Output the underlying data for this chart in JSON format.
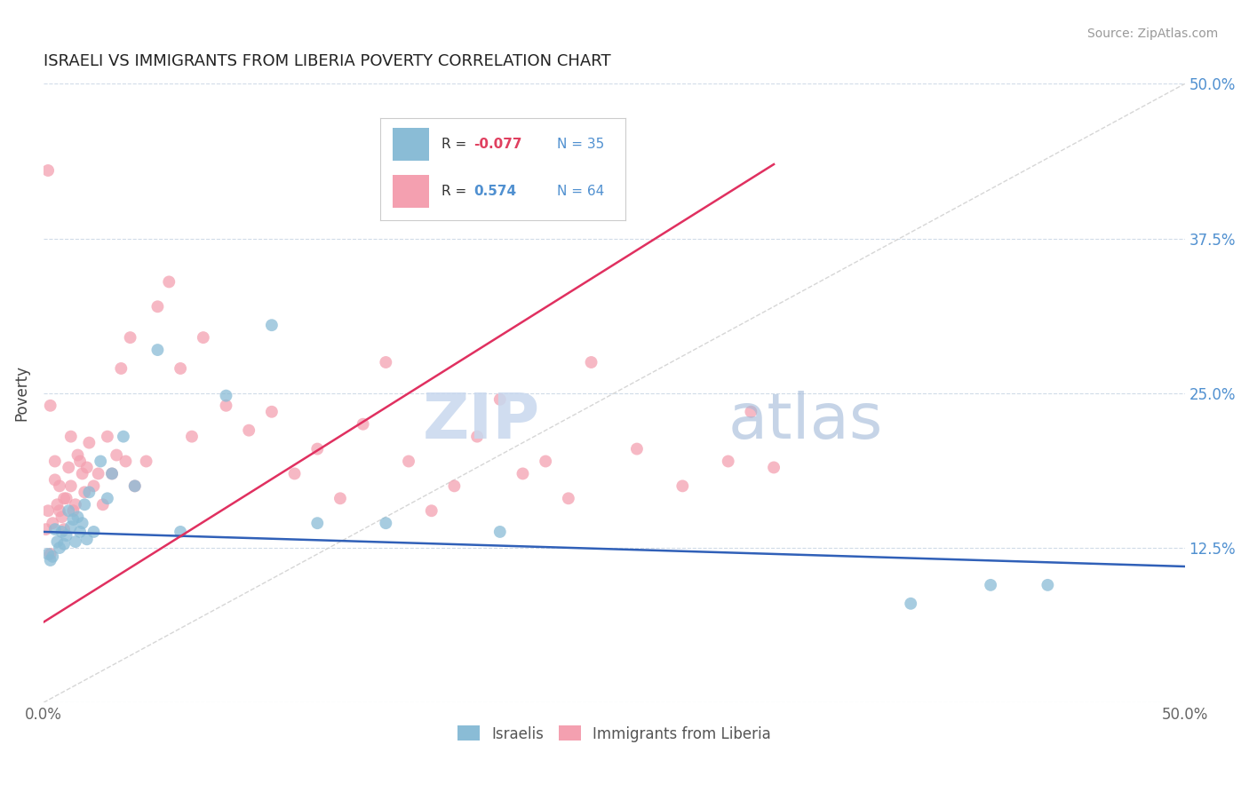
{
  "title": "ISRAELI VS IMMIGRANTS FROM LIBERIA POVERTY CORRELATION CHART",
  "source": "Source: ZipAtlas.com",
  "ylabel": "Poverty",
  "yticks": [
    0.0,
    0.125,
    0.25,
    0.375,
    0.5
  ],
  "ytick_labels": [
    "",
    "12.5%",
    "25.0%",
    "37.5%",
    "50.0%"
  ],
  "xlim": [
    0.0,
    0.5
  ],
  "ylim": [
    0.0,
    0.5
  ],
  "israelis_label": "Israelis",
  "liberia_label": "Immigrants from Liberia",
  "dot_color_israeli": "#8abcd6",
  "dot_color_liberia": "#f4a0b0",
  "line_color_israeli": "#3060b8",
  "line_color_liberia": "#e03060",
  "ref_line_color": "#cccccc",
  "background_color": "#ffffff",
  "grid_color": "#d0dbe8",
  "watermark_zip": "ZIP",
  "watermark_atlas": "atlas",
  "israeli_line_x0": 0.0,
  "israeli_line_y0": 0.138,
  "israeli_line_x1": 0.5,
  "israeli_line_y1": 0.11,
  "liberia_line_x0": 0.0,
  "liberia_line_y0": 0.065,
  "liberia_line_x1": 0.32,
  "liberia_line_y1": 0.435,
  "israeli_x": [
    0.002,
    0.003,
    0.004,
    0.005,
    0.006,
    0.007,
    0.008,
    0.009,
    0.01,
    0.011,
    0.012,
    0.013,
    0.014,
    0.015,
    0.016,
    0.017,
    0.018,
    0.019,
    0.02,
    0.022,
    0.025,
    0.028,
    0.03,
    0.035,
    0.04,
    0.05,
    0.06,
    0.08,
    0.1,
    0.12,
    0.15,
    0.2,
    0.38,
    0.415,
    0.44
  ],
  "israeli_y": [
    0.12,
    0.115,
    0.118,
    0.14,
    0.13,
    0.125,
    0.138,
    0.128,
    0.135,
    0.155,
    0.142,
    0.148,
    0.13,
    0.15,
    0.138,
    0.145,
    0.16,
    0.132,
    0.17,
    0.138,
    0.195,
    0.165,
    0.185,
    0.215,
    0.175,
    0.285,
    0.138,
    0.248,
    0.305,
    0.145,
    0.145,
    0.138,
    0.08,
    0.095,
    0.095
  ],
  "liberia_x": [
    0.001,
    0.002,
    0.003,
    0.004,
    0.005,
    0.006,
    0.007,
    0.008,
    0.009,
    0.01,
    0.011,
    0.012,
    0.013,
    0.014,
    0.015,
    0.016,
    0.017,
    0.018,
    0.019,
    0.02,
    0.022,
    0.024,
    0.026,
    0.028,
    0.03,
    0.032,
    0.034,
    0.036,
    0.038,
    0.04,
    0.045,
    0.05,
    0.055,
    0.06,
    0.065,
    0.07,
    0.08,
    0.09,
    0.1,
    0.11,
    0.12,
    0.13,
    0.14,
    0.15,
    0.16,
    0.17,
    0.18,
    0.19,
    0.2,
    0.21,
    0.22,
    0.23,
    0.24,
    0.26,
    0.28,
    0.3,
    0.31,
    0.32,
    0.002,
    0.003,
    0.005,
    0.007,
    0.009,
    0.012
  ],
  "liberia_y": [
    0.14,
    0.155,
    0.12,
    0.145,
    0.18,
    0.16,
    0.175,
    0.15,
    0.14,
    0.165,
    0.19,
    0.175,
    0.155,
    0.16,
    0.2,
    0.195,
    0.185,
    0.17,
    0.19,
    0.21,
    0.175,
    0.185,
    0.16,
    0.215,
    0.185,
    0.2,
    0.27,
    0.195,
    0.295,
    0.175,
    0.195,
    0.32,
    0.34,
    0.27,
    0.215,
    0.295,
    0.24,
    0.22,
    0.235,
    0.185,
    0.205,
    0.165,
    0.225,
    0.275,
    0.195,
    0.155,
    0.175,
    0.215,
    0.245,
    0.185,
    0.195,
    0.165,
    0.275,
    0.205,
    0.175,
    0.195,
    0.235,
    0.19,
    0.43,
    0.24,
    0.195,
    0.155,
    0.165,
    0.215
  ]
}
